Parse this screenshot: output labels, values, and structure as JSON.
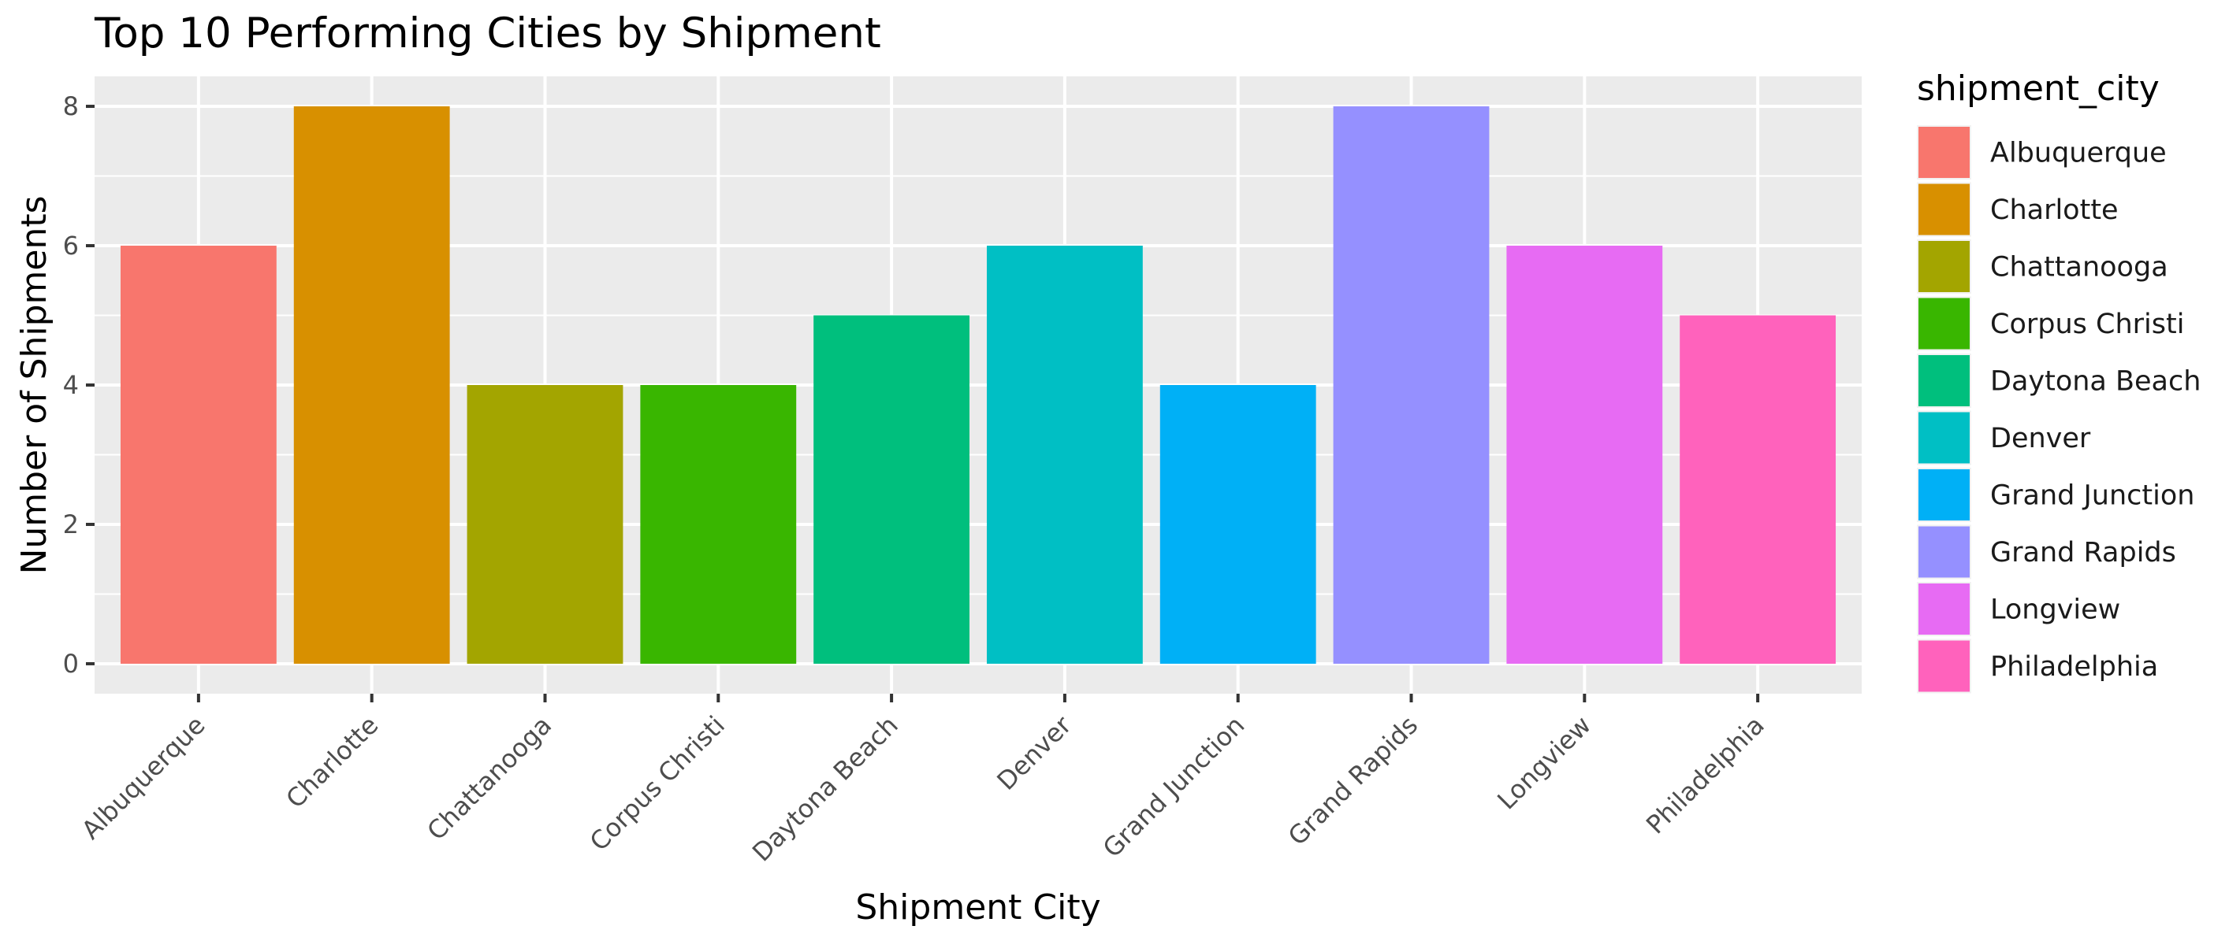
{
  "chart_data": {
    "type": "bar",
    "title": "Top 10 Performing Cities by Shipment",
    "xlabel": "Shipment City",
    "ylabel": "Number of Shipments",
    "categories": [
      "Albuquerque",
      "Charlotte",
      "Chattanooga",
      "Corpus Christi",
      "Daytona Beach",
      "Denver",
      "Grand Junction",
      "Grand Rapids",
      "Longview",
      "Philadelphia"
    ],
    "values": [
      6,
      8,
      4,
      4,
      5,
      6,
      4,
      8,
      6,
      5
    ],
    "colors": [
      "#F8766D",
      "#D89000",
      "#A3A500",
      "#39B600",
      "#00BF7D",
      "#00BFC4",
      "#00B0F6",
      "#9590FF",
      "#E76BF3",
      "#FF62BC"
    ],
    "ylim": [
      -0.43,
      8.43
    ],
    "yticks": [
      0,
      2,
      4,
      6,
      8
    ],
    "grid": true,
    "legend": {
      "title": "shipment_city",
      "position": "right",
      "entries": [
        "Albuquerque",
        "Charlotte",
        "Chattanooga",
        "Corpus Christi",
        "Daytona Beach",
        "Denver",
        "Grand Junction",
        "Grand Rapids",
        "Longview",
        "Philadelphia"
      ]
    }
  }
}
